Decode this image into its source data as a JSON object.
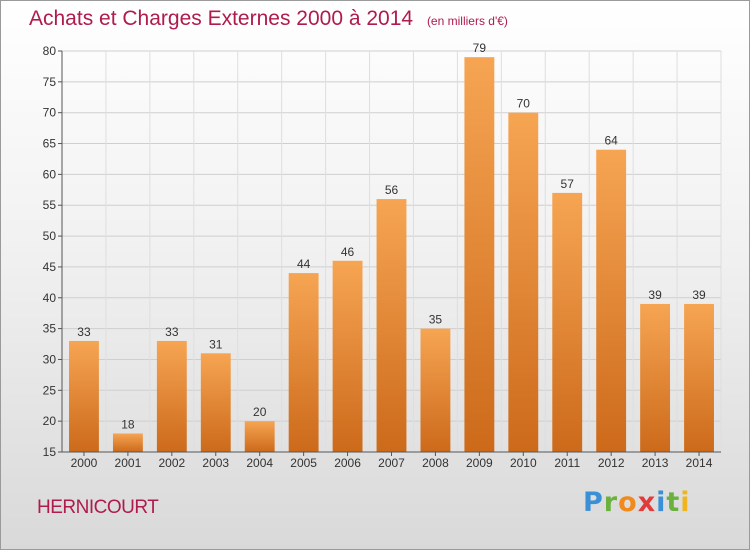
{
  "header": {
    "title": "Achats et Charges Externes 2000 à 2014",
    "unit": "(en milliers d'€)"
  },
  "footer": {
    "commune": "HERNICOURT",
    "logo_text": "Proxiti"
  },
  "colors": {
    "title": "#b01b4e",
    "bar_light": "#f6a553",
    "bar_dark": "#cc6a1a"
  },
  "chart_data": {
    "type": "bar",
    "title": "Achats et Charges Externes 2000 à 2014",
    "subtitle": "(en milliers d'€)",
    "xlabel": "",
    "ylabel": "",
    "categories": [
      "2000",
      "2001",
      "2002",
      "2003",
      "2004",
      "2005",
      "2006",
      "2007",
      "2008",
      "2009",
      "2010",
      "2011",
      "2012",
      "2013",
      "2014"
    ],
    "values": [
      33,
      18,
      33,
      31,
      20,
      44,
      46,
      56,
      35,
      79,
      70,
      57,
      64,
      39,
      39
    ],
    "ylim": [
      15,
      80
    ],
    "yticks": [
      15,
      20,
      25,
      30,
      35,
      40,
      45,
      50,
      55,
      60,
      65,
      70,
      75,
      80
    ],
    "grid": true,
    "legend": "none"
  }
}
